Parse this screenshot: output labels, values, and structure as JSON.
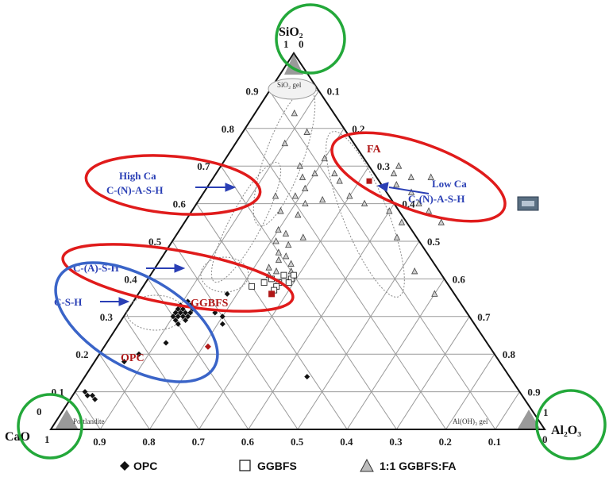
{
  "vertices": {
    "top": "SiO₂",
    "left": "CaO",
    "right": "Al₂O₃"
  },
  "phase_labels": {
    "silica_gel": "SiO₂ gel",
    "portlandite": "Portlandite",
    "aluminium_hydroxide_gel": "Al(OH)₃ gel"
  },
  "annotations": {
    "high_ca_line1": "High Ca",
    "high_ca_line2": "C-(N)-A-S-H",
    "low_ca_line1": "Low Ca",
    "low_ca_line2": "C-(N)-A-S-H",
    "c_a_s_h": "C-(A)-S-H",
    "c_s_h": "C-S-H",
    "fa": "FA",
    "ggbfs": "GGBFS",
    "opc": "OPC"
  },
  "axis_ticks": {
    "left": [
      "0",
      "0.1",
      "0.2",
      "0.3",
      "0.4",
      "0.5",
      "0.6",
      "0.7",
      "0.8",
      "0.9",
      "1"
    ],
    "right": [
      "0",
      "0.1",
      "0.2",
      "0.3",
      "0.4",
      "0.5",
      "0.6",
      "0.7",
      "0.8",
      "0.9",
      "1"
    ],
    "bottom": [
      "1",
      "0.9",
      "0.8",
      "0.7",
      "0.6",
      "0.5",
      "0.4",
      "0.3",
      "0.2",
      "0.1",
      "0"
    ]
  },
  "legend": [
    {
      "marker": "filled-diamond",
      "label": "OPC"
    },
    {
      "marker": "open-square",
      "label": "GGBFS"
    },
    {
      "marker": "grey-triangle",
      "label": "1:1 GGBFS:FA"
    }
  ],
  "colors": {
    "red_ellipse": "#e01b1b",
    "blue_ellipse": "#3a64c8",
    "green_circle": "#23a83a",
    "grid": "#9a9a9a",
    "marker_dark": "#111111",
    "marker_red": "#b01818"
  },
  "data_series": {
    "opc": [
      [
        0.32,
        0.1
      ],
      [
        0.31,
        0.12
      ],
      [
        0.3,
        0.11
      ],
      [
        0.33,
        0.12
      ],
      [
        0.3,
        0.13
      ],
      [
        0.29,
        0.11
      ],
      [
        0.31,
        0.13
      ],
      [
        0.32,
        0.11
      ],
      [
        0.28,
        0.12
      ],
      [
        0.3,
        0.12
      ],
      [
        0.31,
        0.11
      ],
      [
        0.33,
        0.1
      ],
      [
        0.29,
        0.13
      ],
      [
        0.32,
        0.13
      ],
      [
        0.3,
        0.1
      ],
      [
        0.34,
        0.11
      ],
      [
        0.31,
        0.1
      ],
      [
        0.31,
        0.18
      ],
      [
        0.3,
        0.2
      ],
      [
        0.28,
        0.21
      ],
      [
        0.2,
        0.08
      ],
      [
        0.18,
        0.06
      ],
      [
        0.1,
        0.02
      ],
      [
        0.09,
        0.03
      ],
      [
        0.08,
        0.05
      ],
      [
        0.09,
        0.04
      ],
      [
        0.36,
        0.18
      ],
      [
        0.14,
        0.45
      ],
      [
        0.23,
        0.12
      ]
    ],
    "ggbfs": [
      [
        0.4,
        0.25
      ],
      [
        0.41,
        0.27
      ],
      [
        0.39,
        0.27
      ],
      [
        0.4,
        0.29
      ],
      [
        0.38,
        0.27
      ],
      [
        0.41,
        0.29
      ],
      [
        0.38,
        0.22
      ],
      [
        0.39,
        0.24
      ],
      [
        0.39,
        0.29
      ],
      [
        0.37,
        0.27
      ]
    ],
    "ggbfs_fa": [
      [
        0.84,
        0.08
      ],
      [
        0.79,
        0.13
      ],
      [
        0.76,
        0.1
      ],
      [
        0.72,
        0.2
      ],
      [
        0.7,
        0.16
      ],
      [
        0.68,
        0.2
      ],
      [
        0.68,
        0.24
      ],
      [
        0.67,
        0.18
      ],
      [
        0.66,
        0.26
      ],
      [
        0.64,
        0.2
      ],
      [
        0.62,
        0.19
      ],
      [
        0.62,
        0.15
      ],
      [
        0.61,
        0.25
      ],
      [
        0.6,
        0.22
      ],
      [
        0.58,
        0.18
      ],
      [
        0.57,
        0.22
      ],
      [
        0.53,
        0.2
      ],
      [
        0.52,
        0.22
      ],
      [
        0.51,
        0.26
      ],
      [
        0.5,
        0.21
      ],
      [
        0.49,
        0.24
      ],
      [
        0.47,
        0.23
      ],
      [
        0.46,
        0.25
      ],
      [
        0.45,
        0.24
      ],
      [
        0.44,
        0.27
      ],
      [
        0.43,
        0.23
      ],
      [
        0.42,
        0.25
      ],
      [
        0.42,
        0.28
      ],
      [
        0.41,
        0.24
      ],
      [
        0.7,
        0.36
      ],
      [
        0.68,
        0.36
      ],
      [
        0.67,
        0.4
      ],
      [
        0.67,
        0.44
      ],
      [
        0.65,
        0.38
      ],
      [
        0.63,
        0.42
      ],
      [
        0.6,
        0.45
      ],
      [
        0.58,
        0.48
      ],
      [
        0.55,
        0.52
      ],
      [
        0.62,
        0.3
      ],
      [
        0.6,
        0.34
      ],
      [
        0.58,
        0.4
      ],
      [
        0.55,
        0.44
      ],
      [
        0.51,
        0.45
      ],
      [
        0.42,
        0.53
      ],
      [
        0.36,
        0.6
      ]
    ],
    "fa_point": [
      0.66,
      0.32
    ],
    "ggbfs_point": [
      0.36,
      0.27
    ],
    "opc_point": [
      0.22,
      0.21
    ]
  }
}
